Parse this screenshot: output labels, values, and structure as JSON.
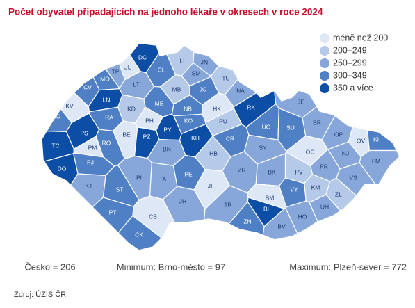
{
  "title": "Počet obyvatel připadajících na jednoho lékaře v okresech v roce 2024",
  "legend": [
    {
      "label": "méně než 200",
      "color": "#dde7f5"
    },
    {
      "label": "200–249",
      "color": "#b5c9e9"
    },
    {
      "label": "250–299",
      "color": "#87a7da"
    },
    {
      "label": "300–349",
      "color": "#4f80c5"
    },
    {
      "label": "350 a více",
      "color": "#0c4ea6"
    }
  ],
  "districts": [
    {
      "label": "DC",
      "color": "#0c4ea6"
    },
    {
      "label": "LI",
      "color": "#b5c9e9"
    },
    {
      "label": "CL",
      "color": "#4f80c5"
    },
    {
      "label": "UL",
      "color": "#dde7f5"
    },
    {
      "label": "TP",
      "color": "#87a7da"
    },
    {
      "label": "MO",
      "color": "#4f80c5"
    },
    {
      "label": "JN",
      "color": "#87a7da"
    },
    {
      "label": "SM",
      "color": "#87a7da"
    },
    {
      "label": "TU",
      "color": "#b5c9e9"
    },
    {
      "label": "NA",
      "color": "#87a7da"
    },
    {
      "label": "CV",
      "color": "#4f80c5"
    },
    {
      "label": "LT",
      "color": "#87a7da"
    },
    {
      "label": "MB",
      "color": "#b5c9e9"
    },
    {
      "label": "JC",
      "color": "#4f80c5"
    },
    {
      "label": "KV",
      "color": "#dde7f5"
    },
    {
      "label": "LN",
      "color": "#0c4ea6"
    },
    {
      "label": "KD",
      "color": "#b5c9e9"
    },
    {
      "label": "ME",
      "color": "#4f80c5"
    },
    {
      "label": "NB",
      "color": "#4f80c5"
    },
    {
      "label": "HK",
      "color": "#dde7f5"
    },
    {
      "label": "RK",
      "color": "#0c4ea6"
    },
    {
      "label": "JE",
      "color": "#87a7da"
    },
    {
      "label": "RA",
      "color": "#4f80c5"
    },
    {
      "label": "PH",
      "color": "#dde7f5"
    },
    {
      "label": "PY",
      "color": "#0c4ea6"
    },
    {
      "label": "KO",
      "color": "#4f80c5"
    },
    {
      "label": "PU",
      "color": "#b5c9e9"
    },
    {
      "label": "UO",
      "color": "#4f80c5"
    },
    {
      "label": "SU",
      "color": "#4f80c5"
    },
    {
      "label": "BR",
      "color": "#87a7da"
    },
    {
      "label": "OP",
      "color": "#87a7da"
    },
    {
      "label": "OV",
      "color": "#dde7f5"
    },
    {
      "label": "KI",
      "color": "#4f80c5"
    },
    {
      "label": "SO",
      "color": "#4f80c5"
    },
    {
      "label": "PS",
      "color": "#0c4ea6"
    },
    {
      "label": "BE",
      "color": "#dde7f5"
    },
    {
      "label": "PZ",
      "color": "#0c4ea6"
    },
    {
      "label": "KH",
      "color": "#0c4ea6"
    },
    {
      "label": "CR",
      "color": "#4f80c5"
    },
    {
      "label": "TC",
      "color": "#0c4ea6"
    },
    {
      "label": "PM",
      "color": "#dde7f5"
    },
    {
      "label": "RO",
      "color": "#4f80c5"
    },
    {
      "label": "BN",
      "color": "#87a7da"
    },
    {
      "label": "SY",
      "color": "#87a7da"
    },
    {
      "label": "OC",
      "color": "#dde7f5"
    },
    {
      "label": "NJ",
      "color": "#87a7da"
    },
    {
      "label": "FM",
      "color": "#87a7da"
    },
    {
      "label": "PJ",
      "color": "#4f80c5"
    },
    {
      "label": "HB",
      "color": "#b5c9e9"
    },
    {
      "label": "ZR",
      "color": "#87a7da"
    },
    {
      "label": "BK",
      "color": "#87a7da"
    },
    {
      "label": "PV",
      "color": "#b5c9e9"
    },
    {
      "label": "PR",
      "color": "#87a7da"
    },
    {
      "label": "VS",
      "color": "#87a7da"
    },
    {
      "label": "DO",
      "color": "#0c4ea6"
    },
    {
      "label": "PI",
      "color": "#87a7da"
    },
    {
      "label": "TA",
      "color": "#87a7da"
    },
    {
      "label": "PE",
      "color": "#4f80c5"
    },
    {
      "label": "JI",
      "color": "#dde7f5"
    },
    {
      "label": "KM",
      "color": "#b5c9e9"
    },
    {
      "label": "ZL",
      "color": "#b5c9e9"
    },
    {
      "label": "KT",
      "color": "#87a7da"
    },
    {
      "label": "ST",
      "color": "#4f80c5"
    },
    {
      "label": "JH",
      "color": "#87a7da"
    },
    {
      "label": "TR",
      "color": "#87a7da"
    },
    {
      "label": "BM",
      "color": "#dde7f5"
    },
    {
      "label": "VY",
      "color": "#4f80c5"
    },
    {
      "label": "UH",
      "color": "#87a7da"
    },
    {
      "label": "BI",
      "color": "#0c4ea6"
    },
    {
      "label": "HO",
      "color": "#87a7da"
    },
    {
      "label": "ZN",
      "color": "#4f80c5"
    },
    {
      "label": "BV",
      "color": "#87a7da"
    },
    {
      "label": "CB",
      "color": "#dde7f5"
    },
    {
      "label": "PT",
      "color": "#4f80c5"
    },
    {
      "label": "CK",
      "color": "#4f80c5"
    }
  ],
  "stats": [
    "Česko = 206",
    "Minimum: Brno-město = 97",
    "Maximum: Plzeň-sever = 772"
  ],
  "source": "Zdroj: ÚZIS ČR"
}
